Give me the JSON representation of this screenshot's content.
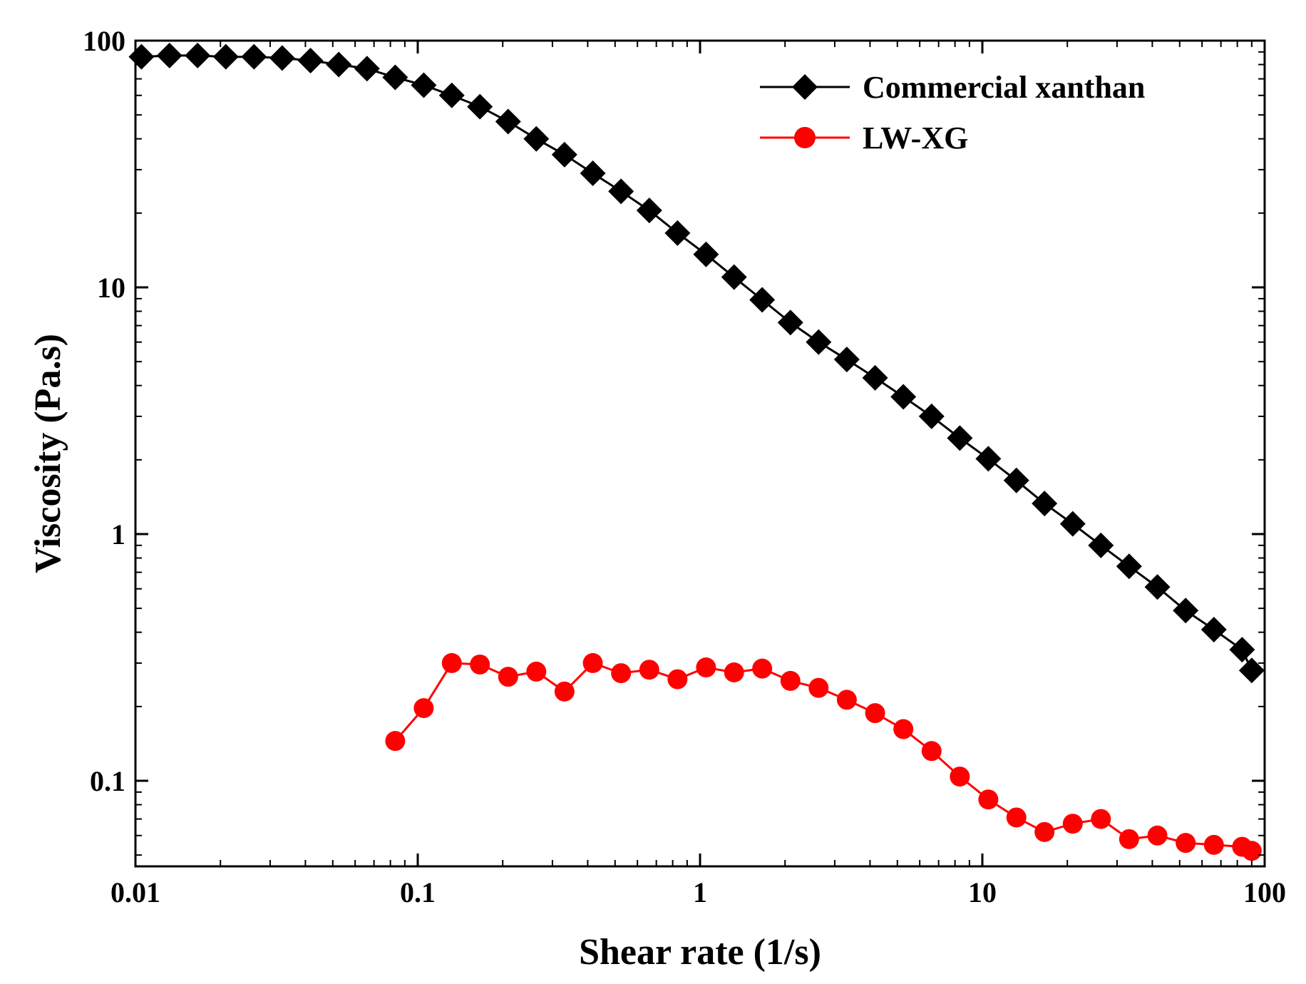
{
  "chart_data": {
    "type": "line",
    "title": "",
    "xlabel": "Shear rate (1/s)",
    "ylabel": "Viscosity (Pa.s)",
    "xscale": "log",
    "yscale": "log",
    "xlim": [
      0.01,
      100
    ],
    "ylim": [
      0.045,
      100
    ],
    "x_ticks": [
      0.01,
      0.1,
      1,
      10,
      100
    ],
    "x_tick_labels": [
      "0.01",
      "0.1",
      "1",
      "10",
      "100"
    ],
    "y_ticks": [
      0.1,
      1,
      10,
      100
    ],
    "y_tick_labels": [
      "0.1",
      "1",
      "10",
      "100"
    ],
    "grid": false,
    "legend_position": "top-right",
    "series": [
      {
        "name": "Commercial xanthan",
        "color": "#000000",
        "marker": "diamond",
        "x": [
          0.0105,
          0.0132,
          0.0166,
          0.0209,
          0.0263,
          0.0331,
          0.0417,
          0.0525,
          0.0661,
          0.0832,
          0.105,
          0.132,
          0.166,
          0.209,
          0.263,
          0.331,
          0.417,
          0.525,
          0.661,
          0.832,
          1.05,
          1.32,
          1.66,
          2.09,
          2.63,
          3.31,
          4.17,
          5.25,
          6.61,
          8.32,
          10.5,
          13.2,
          16.6,
          20.9,
          26.3,
          33.1,
          41.7,
          52.5,
          66.1,
          83.2,
          90
        ],
        "values": [
          86,
          87,
          87,
          86,
          86,
          85,
          83,
          80,
          77,
          71,
          66,
          60,
          54,
          47,
          40,
          34.5,
          29,
          24.5,
          20.5,
          16.6,
          13.6,
          11,
          8.9,
          7.2,
          6,
          5.1,
          4.3,
          3.6,
          3,
          2.45,
          2.02,
          1.65,
          1.33,
          1.1,
          0.9,
          0.74,
          0.61,
          0.49,
          0.41,
          0.34,
          0.28
        ]
      },
      {
        "name": "LW-XG",
        "color": "#ff0000",
        "marker": "circle",
        "x": [
          0.0832,
          0.105,
          0.132,
          0.166,
          0.209,
          0.263,
          0.331,
          0.417,
          0.525,
          0.661,
          0.832,
          1.05,
          1.32,
          1.66,
          2.09,
          2.63,
          3.31,
          4.17,
          5.25,
          6.61,
          8.32,
          10.5,
          13.2,
          16.6,
          20.9,
          26.3,
          33.1,
          41.7,
          52.5,
          66.1,
          83.2,
          90
        ],
        "values": [
          0.145,
          0.197,
          0.3,
          0.296,
          0.264,
          0.277,
          0.23,
          0.3,
          0.273,
          0.282,
          0.258,
          0.288,
          0.275,
          0.285,
          0.254,
          0.238,
          0.213,
          0.188,
          0.162,
          0.132,
          0.104,
          0.084,
          0.071,
          0.062,
          0.067,
          0.07,
          0.058,
          0.06,
          0.056,
          0.055,
          0.054,
          0.052
        ]
      }
    ]
  }
}
